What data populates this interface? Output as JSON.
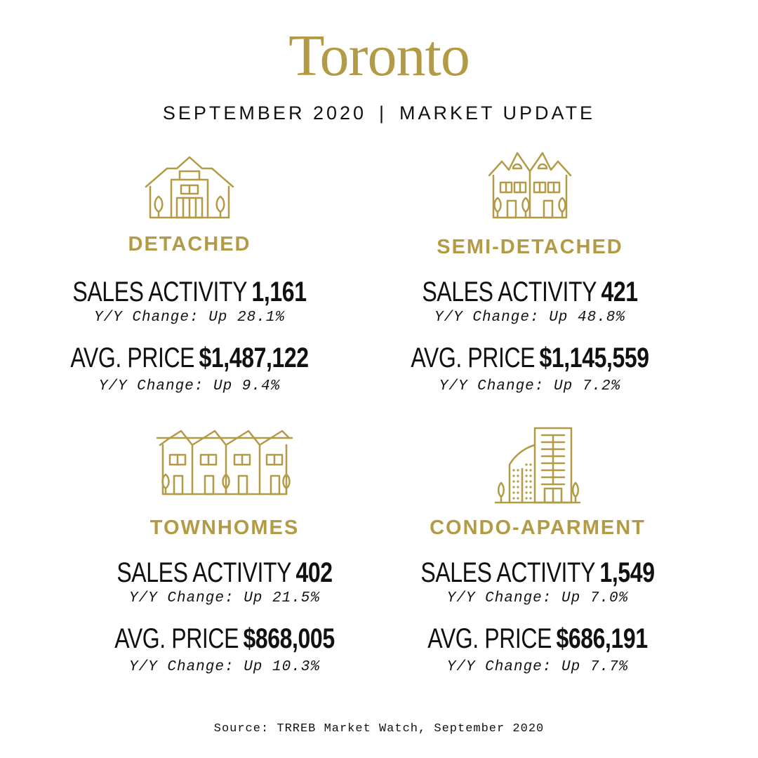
{
  "header": {
    "title": "Toronto",
    "subtitle_left": "SEPTEMBER 2020",
    "subtitle_separator": "|",
    "subtitle_right": "MARKET UPDATE"
  },
  "colors": {
    "gold": "#B39A45",
    "text": "#111111",
    "background": "#ffffff"
  },
  "sections": [
    {
      "name": "DETACHED",
      "icon": "detached-house-icon",
      "sales_label": "SALES ACTIVITY",
      "sales_value": "1,161",
      "sales_change": "Y/Y Change: Up 28.1%",
      "price_label": "AVG. PRICE",
      "price_value": "$1,487,122",
      "price_change": "Y/Y Change: Up 9.4%"
    },
    {
      "name": "SEMI-DETACHED",
      "icon": "semi-detached-house-icon",
      "sales_label": "SALES ACTIVITY",
      "sales_value": "421",
      "sales_change": "Y/Y Change: Up 48.8%",
      "price_label": "AVG. PRICE",
      "price_value": "$1,145,559",
      "price_change": "Y/Y Change: Up 7.2%"
    },
    {
      "name": "TOWNHOMES",
      "icon": "townhomes-icon",
      "sales_label": "SALES ACTIVITY",
      "sales_value": "402",
      "sales_change": "Y/Y Change: Up 21.5%",
      "price_label": "AVG. PRICE",
      "price_value": "$868,005",
      "price_change": "Y/Y Change: Up 10.3%"
    },
    {
      "name": "CONDO-APARMENT",
      "icon": "condo-building-icon",
      "sales_label": "SALES ACTIVITY",
      "sales_value": "1,549",
      "sales_change": "Y/Y Change: Up 7.0%",
      "price_label": "AVG. PRICE",
      "price_value": "$686,191",
      "price_change": "Y/Y Change: Up 7.7%"
    }
  ],
  "footer": {
    "source": "Source: TRREB Market Watch, September 2020"
  }
}
